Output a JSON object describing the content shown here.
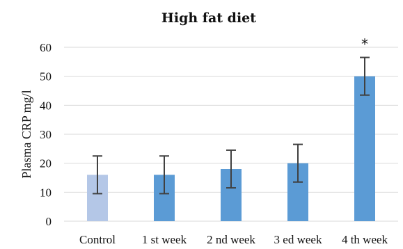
{
  "chart_data": {
    "type": "bar",
    "title": "High fat diet",
    "ylabel": "Plasma CRP mg/l",
    "xlabel": "",
    "categories": [
      "Control",
      "1 st week",
      "2 nd week",
      "3 ed week",
      "4 th week"
    ],
    "values": [
      16,
      16,
      18,
      20,
      50
    ],
    "errors": [
      6.5,
      6.5,
      6.5,
      6.5,
      6.5
    ],
    "annotations": [
      "",
      "",
      "",
      "",
      "*"
    ],
    "ylim": [
      0,
      60
    ],
    "yticks": [
      0,
      10,
      20,
      30,
      40,
      50,
      60
    ],
    "grid": true,
    "colors": {
      "control": "#b4c7e7",
      "bars": "#5b9bd5",
      "error": "#404040"
    }
  }
}
